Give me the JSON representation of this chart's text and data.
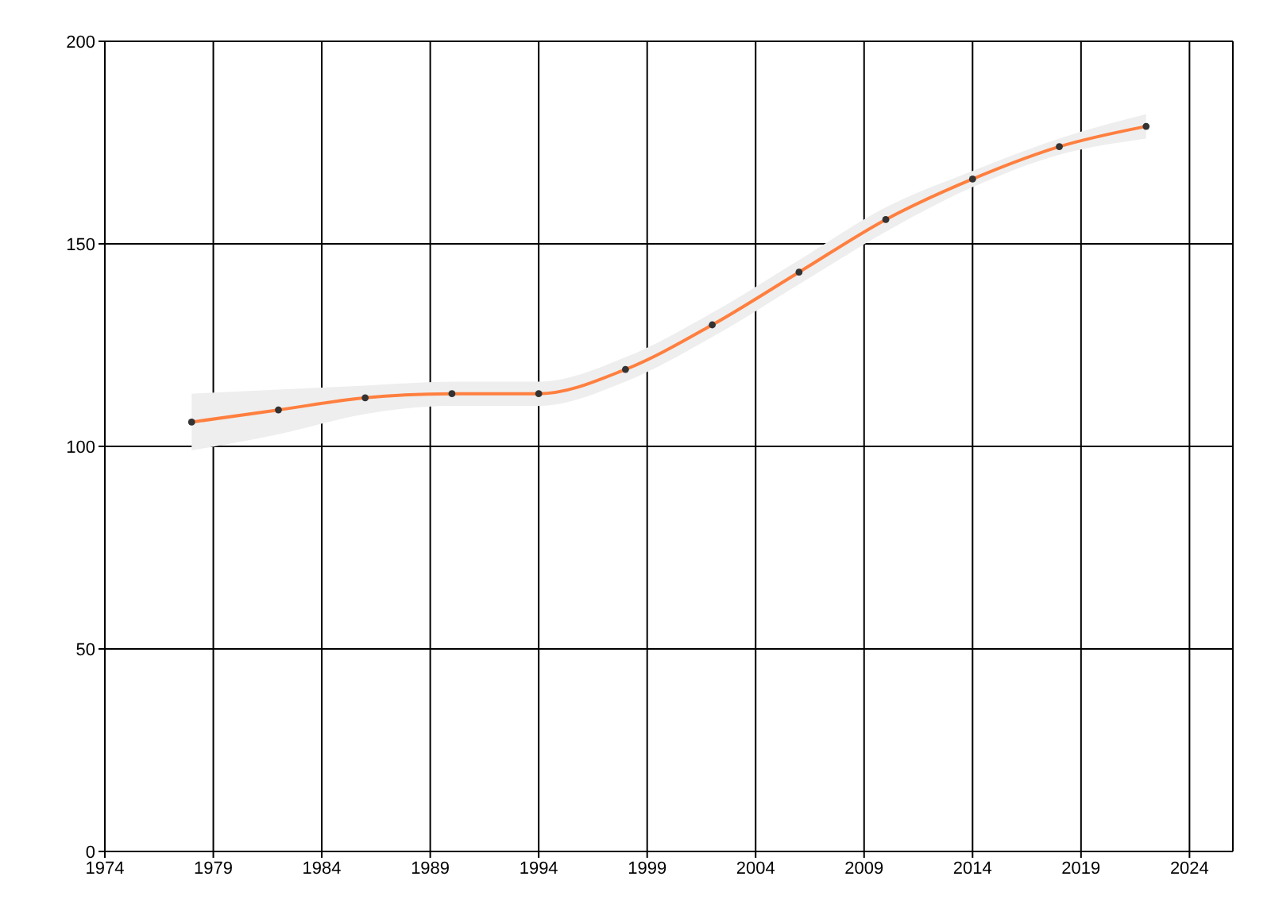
{
  "chart_data": {
    "type": "line",
    "x": [
      1978,
      1982,
      1986,
      1990,
      1994,
      1998,
      2002,
      2006,
      2010,
      2014,
      2018,
      2022
    ],
    "series": [
      {
        "color": "#ff7f3f",
        "values": [
          106,
          109,
          112,
          113,
          113,
          119,
          130,
          143,
          156,
          166,
          174,
          179
        ],
        "lower": [
          99,
          103,
          108,
          110,
          110,
          116,
          127,
          140,
          153,
          164,
          172,
          176
        ],
        "upper": [
          113,
          114,
          115,
          116,
          116,
          122,
          133,
          146,
          159,
          168,
          176,
          182
        ]
      }
    ],
    "xlim": [
      1974,
      2026
    ],
    "xticks": [
      1974,
      1979,
      1984,
      1989,
      1994,
      1999,
      2004,
      2009,
      2014,
      2019,
      2024
    ],
    "ylim": [
      0,
      200
    ],
    "yticks": [
      0,
      50,
      100,
      150,
      200
    ],
    "grid": true,
    "marker": "circle",
    "line_style": "solid",
    "legend": false
  }
}
